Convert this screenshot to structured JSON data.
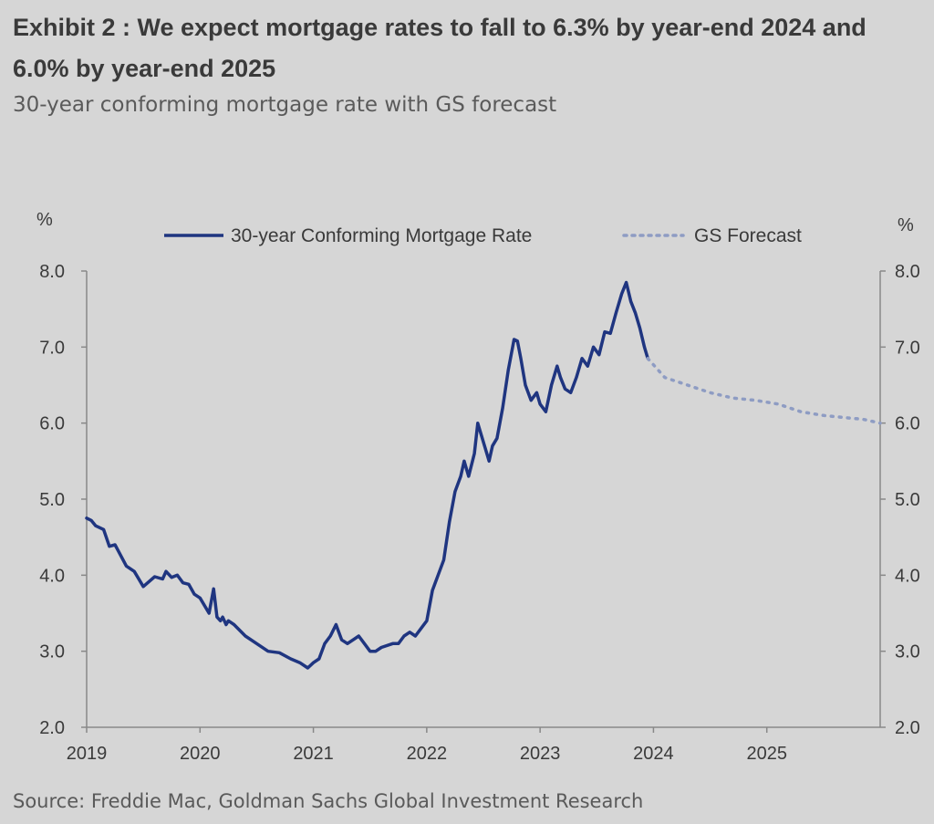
{
  "title": "Exhibit 2 : We expect mortgage rates to fall to 6.3% by year-end 2024 and 6.0% by year-end 2025",
  "subtitle": "30-year conforming mortgage rate with GS forecast",
  "source": "Source: Freddie Mac, Goldman Sachs Global Investment Research",
  "colors": {
    "actual": "#1f3580",
    "forecast": "#8e9cc3",
    "axis": "#888888",
    "text": "#3a3a3a",
    "background": "#d6d6d6"
  },
  "chart_data": {
    "type": "line",
    "title": "Exhibit 2 : We expect mortgage rates to fall to 6.3% by year-end 2024 and 6.0% by year-end 2025",
    "subtitle": "30-year conforming mortgage rate with GS forecast",
    "ylabel_left": "%",
    "ylabel_right": "%",
    "ylim": [
      2.0,
      8.0
    ],
    "yticks": [
      "2.0",
      "3.0",
      "4.0",
      "5.0",
      "6.0",
      "7.0",
      "8.0"
    ],
    "xlim": [
      2019.0,
      2026.0
    ],
    "xticks": [
      "2019",
      "2020",
      "2021",
      "2022",
      "2023",
      "2024",
      "2025"
    ],
    "legend_position": "top",
    "grid": false,
    "series": [
      {
        "name": "30-year Conforming Mortgage Rate",
        "style": "solid",
        "x": [
          2019.0,
          2019.04,
          2019.08,
          2019.15,
          2019.2,
          2019.25,
          2019.35,
          2019.42,
          2019.5,
          2019.6,
          2019.67,
          2019.7,
          2019.75,
          2019.8,
          2019.85,
          2019.9,
          2019.95,
          2020.0,
          2020.08,
          2020.12,
          2020.15,
          2020.18,
          2020.2,
          2020.23,
          2020.25,
          2020.3,
          2020.4,
          2020.5,
          2020.6,
          2020.7,
          2020.8,
          2020.88,
          2020.95,
          2021.0,
          2021.05,
          2021.1,
          2021.15,
          2021.2,
          2021.25,
          2021.3,
          2021.35,
          2021.4,
          2021.45,
          2021.5,
          2021.55,
          2021.6,
          2021.7,
          2021.75,
          2021.8,
          2021.85,
          2021.9,
          2021.95,
          2022.0,
          2022.05,
          2022.1,
          2022.15,
          2022.2,
          2022.25,
          2022.3,
          2022.33,
          2022.37,
          2022.42,
          2022.45,
          2022.5,
          2022.55,
          2022.58,
          2022.62,
          2022.67,
          2022.72,
          2022.77,
          2022.8,
          2022.83,
          2022.87,
          2022.92,
          2022.97,
          2023.0,
          2023.05,
          2023.1,
          2023.15,
          2023.18,
          2023.22,
          2023.27,
          2023.32,
          2023.37,
          2023.42,
          2023.47,
          2023.52,
          2023.57,
          2023.62,
          2023.67,
          2023.72,
          2023.76,
          2023.8,
          2023.84,
          2023.88,
          2023.92,
          2023.95
        ],
        "y": [
          4.75,
          4.72,
          4.65,
          4.6,
          4.38,
          4.4,
          4.12,
          4.05,
          3.85,
          3.98,
          3.95,
          4.05,
          3.97,
          4.0,
          3.9,
          3.88,
          3.75,
          3.7,
          3.5,
          3.82,
          3.45,
          3.4,
          3.45,
          3.35,
          3.4,
          3.35,
          3.2,
          3.1,
          3.0,
          2.98,
          2.9,
          2.85,
          2.78,
          2.85,
          2.9,
          3.1,
          3.2,
          3.35,
          3.15,
          3.1,
          3.15,
          3.2,
          3.1,
          3.0,
          3.0,
          3.05,
          3.1,
          3.1,
          3.2,
          3.25,
          3.2,
          3.3,
          3.4,
          3.8,
          4.0,
          4.2,
          4.7,
          5.1,
          5.3,
          5.5,
          5.3,
          5.6,
          6.0,
          5.75,
          5.5,
          5.7,
          5.8,
          6.2,
          6.7,
          7.1,
          7.08,
          6.85,
          6.5,
          6.3,
          6.4,
          6.25,
          6.15,
          6.5,
          6.75,
          6.6,
          6.45,
          6.4,
          6.6,
          6.85,
          6.75,
          7.0,
          6.9,
          7.2,
          7.18,
          7.45,
          7.7,
          7.85,
          7.6,
          7.45,
          7.25,
          7.0,
          6.85
        ]
      },
      {
        "name": "GS Forecast",
        "style": "dotted",
        "x": [
          2023.95,
          2024.1,
          2024.3,
          2024.5,
          2024.7,
          2024.9,
          2025.1,
          2025.3,
          2025.5,
          2025.7,
          2025.85,
          2026.0
        ],
        "y": [
          6.85,
          6.6,
          6.5,
          6.4,
          6.33,
          6.3,
          6.25,
          6.15,
          6.1,
          6.07,
          6.05,
          6.0
        ]
      }
    ]
  }
}
